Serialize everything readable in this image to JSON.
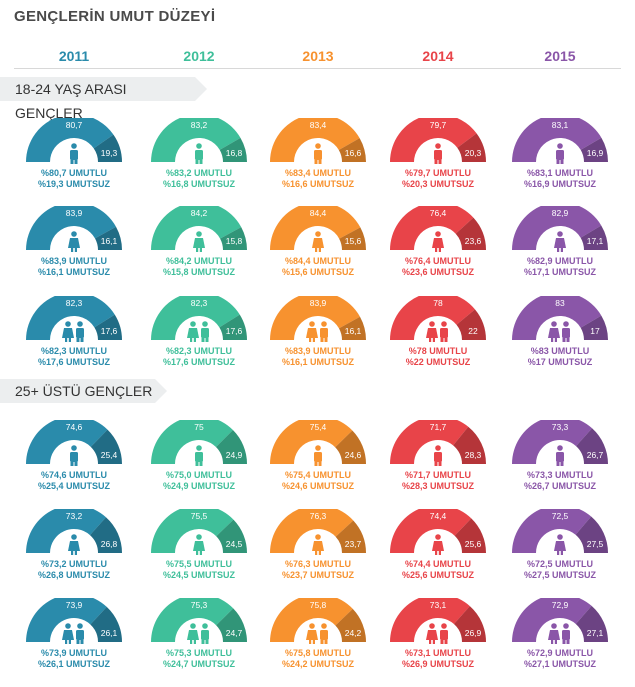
{
  "title": "GENÇLERİN UMUT DÜZEYİ",
  "years": [
    "2011",
    "2012",
    "2013",
    "2014",
    "2015"
  ],
  "colors": [
    "#2a8bab",
    "#3fbf9a",
    "#f7922f",
    "#e84449",
    "#8a56a8"
  ],
  "sections": [
    {
      "label": "18-24 YAŞ ARASI GENÇLER"
    },
    {
      "label": "25+ ÜSTÜ GENÇLER"
    }
  ],
  "chart_data": {
    "type": "pie",
    "years": [
      "2011",
      "2012",
      "2013",
      "2014",
      "2015"
    ],
    "groups": [
      {
        "section": "18-24 YAŞ ARASI GENÇLER",
        "icon": "male-icon",
        "hopeful": [
          "80,7",
          "83,2",
          "83,4",
          "79,7",
          "83,1"
        ],
        "hopeless": [
          "19,3",
          "16,8",
          "16,6",
          "20,3",
          "16,9"
        ],
        "hopeful_text": [
          "%80,7 UMUTLU",
          "%83,2 UMUTLU",
          "%83,4 UMUTLU",
          "%79,7 UMUTLU",
          "%83,1 UMUTLU"
        ],
        "hopeless_text": [
          "%19,3 UMUTSUZ",
          "%16,8 UMUTSUZ",
          "%16,6 UMUTSUZ",
          "%20,3 UMUTSUZ",
          "%16,9 UMUTSUZ"
        ]
      },
      {
        "section": "18-24 YAŞ ARASI GENÇLER",
        "icon": "female-icon",
        "hopeful": [
          "83,9",
          "84,2",
          "84,4",
          "76,4",
          "82,9"
        ],
        "hopeless": [
          "16,1",
          "15,8",
          "15,6",
          "23,6",
          "17,1"
        ],
        "hopeful_text": [
          "%83,9 UMUTLU",
          "%84,2 UMUTLU",
          "%84,4 UMUTLU",
          "%76,4 UMUTLU",
          "%82,9 UMUTLU"
        ],
        "hopeless_text": [
          "%16,1 UMUTSUZ",
          "%15,8 UMUTSUZ",
          "%15,6 UMUTSUZ",
          "%23,6 UMUTSUZ",
          "%17,1 UMUTSUZ"
        ]
      },
      {
        "section": "18-24 YAŞ ARASI GENÇLER",
        "icon": "couple-icon",
        "hopeful": [
          "82,3",
          "82,3",
          "83,9",
          "78",
          "83"
        ],
        "hopeless": [
          "17,6",
          "17,6",
          "16,1",
          "22",
          "17"
        ],
        "hopeful_text": [
          "%82,3 UMUTLU",
          "%82,3 UMUTLU",
          "%83,9 UMUTLU",
          "%78 UMUTLU",
          "%83 UMUTLU"
        ],
        "hopeless_text": [
          "%17,6 UMUTSUZ",
          "%17,6 UMUTSUZ",
          "%16,1 UMUTSUZ",
          "%22 UMUTSUZ",
          "%17 UMUTSUZ"
        ]
      },
      {
        "section": "25+ ÜSTÜ GENÇLER",
        "icon": "male-icon",
        "hopeful": [
          "74,6",
          "75",
          "75,4",
          "71,7",
          "73,3"
        ],
        "hopeless": [
          "25,4",
          "24,9",
          "24,6",
          "28,3",
          "26,7"
        ],
        "hopeful_text": [
          "%74,6 UMUTLU",
          "%75,0 UMUTLU",
          "%75,4 UMUTLU",
          "%71,7 UMUTLU",
          "%73,3 UMUTLU"
        ],
        "hopeless_text": [
          "%25,4 UMUTSUZ",
          "%24,9 UMUTSUZ",
          "%24,6 UMUTSUZ",
          "%28,3 UMUTSUZ",
          "%26,7 UMUTSUZ"
        ]
      },
      {
        "section": "25+ ÜSTÜ GENÇLER",
        "icon": "female-icon",
        "hopeful": [
          "73,2",
          "75,5",
          "76,3",
          "74,4",
          "72,5"
        ],
        "hopeless": [
          "26,8",
          "24,5",
          "23,7",
          "25,6",
          "27,5"
        ],
        "hopeful_text": [
          "%73,2 UMUTLU",
          "%75,5 UMUTLU",
          "%76,3 UMUTLU",
          "%74,4 UMUTLU",
          "%72,5 UMUTLU"
        ],
        "hopeless_text": [
          "%26,8 UMUTSUZ",
          "%24,5 UMUTSUZ",
          "%23,7 UMUTSUZ",
          "%25,6 UMUTSUZ",
          "%27,5 UMUTSUZ"
        ]
      },
      {
        "section": "25+ ÜSTÜ GENÇLER",
        "icon": "couple-icon",
        "hopeful": [
          "73,9",
          "75,3",
          "75,8",
          "73,1",
          "72,9"
        ],
        "hopeless": [
          "26,1",
          "24,7",
          "24,2",
          "26,9",
          "27,1"
        ],
        "hopeful_text": [
          "%73,9 UMUTLU",
          "%75,3 UMUTLU",
          "%75,8 UMUTLU",
          "%73,1 UMUTLU",
          "%72,9 UMUTLU"
        ],
        "hopeless_text": [
          "%26,1 UMUTSUZ",
          "%24,7 UMUTSUZ",
          "%24,2 UMUTSUZ",
          "%26,9 UMUTSUZ",
          "%27,1 UMUTSUZ"
        ]
      }
    ]
  }
}
